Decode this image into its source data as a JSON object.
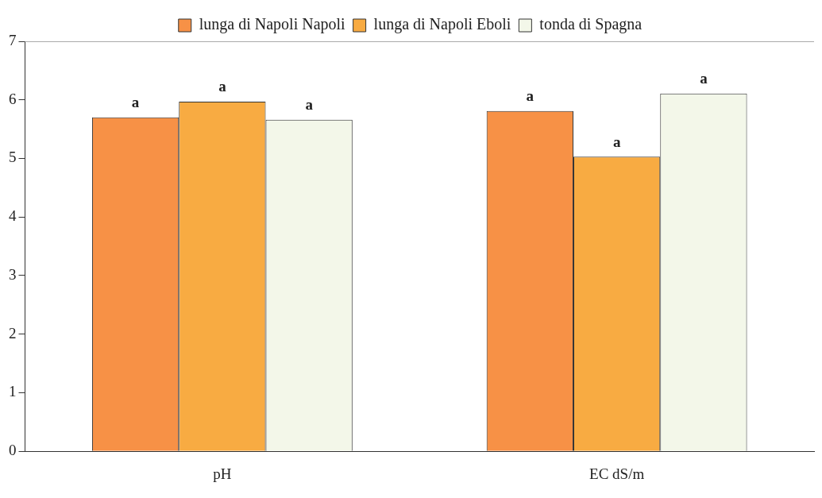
{
  "chart_data": {
    "type": "bar",
    "categories": [
      "pH",
      "EC dS/m"
    ],
    "series": [
      {
        "name": "lunga di Napoli Napoli",
        "color": "#f79146",
        "values": [
          5.7,
          5.81
        ],
        "value_labels": [
          "a",
          "a"
        ]
      },
      {
        "name": "lunga di Napoli Eboli",
        "color": "#f8ab42",
        "values": [
          5.97,
          5.03
        ],
        "value_labels": [
          "a",
          "a"
        ]
      },
      {
        "name": "tonda di Spagna",
        "color": "#f3f7e9",
        "values": [
          5.66,
          6.11
        ],
        "value_labels": [
          "a",
          "a"
        ]
      }
    ],
    "ylim": [
      0,
      7
    ],
    "yticks": [
      0,
      1,
      2,
      3,
      4,
      5,
      6,
      7
    ],
    "grid": false,
    "legend": "top"
  }
}
